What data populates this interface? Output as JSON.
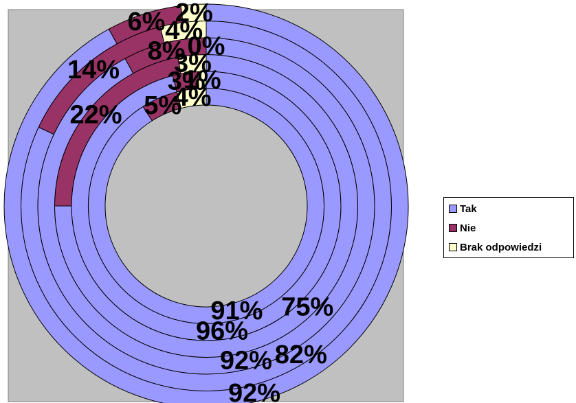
{
  "chart_data": {
    "type": "donut",
    "title": "",
    "categories": [
      "Tak",
      "Nie",
      "Brak odpowiedzi"
    ],
    "colors": [
      "#9999FF",
      "#993366",
      "#FFFFCC"
    ],
    "plot_background": "#C0C0C0",
    "legend_position": "right",
    "rings": [
      {
        "values": [
          91,
          5,
          4
        ],
        "labels": [
          "91%",
          "5%",
          "4%"
        ]
      },
      {
        "values": [
          96,
          3,
          1
        ],
        "labels": [
          "96%",
          "3%",
          "1%"
        ]
      },
      {
        "values": [
          75,
          22,
          3
        ],
        "labels": [
          "75%",
          "22%",
          "3%"
        ]
      },
      {
        "values": [
          92,
          8,
          0
        ],
        "labels": [
          "92%",
          "8%",
          "0%"
        ]
      },
      {
        "values": [
          82,
          14,
          4
        ],
        "labels": [
          "82%",
          "14%",
          "4%"
        ]
      },
      {
        "values": [
          92,
          6,
          2
        ],
        "labels": [
          "92%",
          "6%",
          "2%"
        ]
      }
    ]
  }
}
